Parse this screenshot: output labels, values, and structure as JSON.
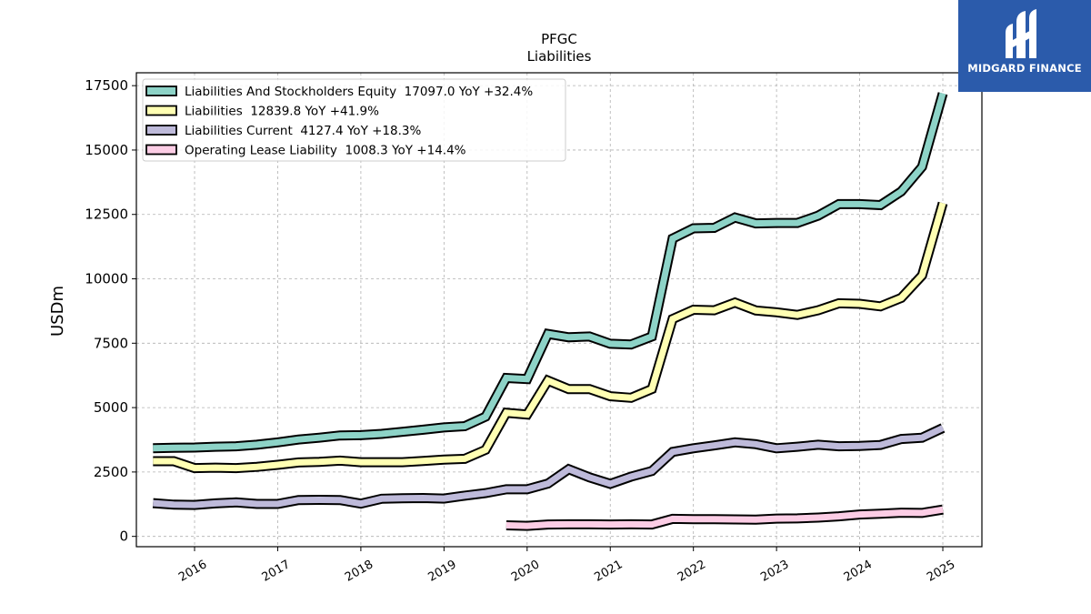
{
  "brand": {
    "name": "MIDGARD FINANCE",
    "logo_icon": "midgard-logo-icon",
    "background": "#2b5bab"
  },
  "chart_data": {
    "type": "line",
    "title": "PFGC",
    "subtitle": "Liabilities",
    "xlabel": "",
    "ylabel": "USDm",
    "xlim": [
      2015.3,
      2025.47
    ],
    "ylim": [
      -400,
      18000
    ],
    "yticks": [
      0,
      2500,
      5000,
      7500,
      10000,
      12500,
      15000,
      17500
    ],
    "xticks": [
      2016,
      2017,
      2018,
      2019,
      2020,
      2021,
      2022,
      2023,
      2024,
      2025
    ],
    "grid": true,
    "legend_position": "top-left",
    "series": [
      {
        "name": "Liabilities And Stockholders Equity",
        "legend": "Liabilities And Stockholders Equity  17097.0 YoY +32.4%",
        "color": "#8dd3c7",
        "points": [
          [
            2015.5,
            3420
          ],
          [
            2015.75,
            3440
          ],
          [
            2016.0,
            3450
          ],
          [
            2016.25,
            3480
          ],
          [
            2016.5,
            3500
          ],
          [
            2016.75,
            3560
          ],
          [
            2017.0,
            3650
          ],
          [
            2017.25,
            3760
          ],
          [
            2017.5,
            3830
          ],
          [
            2017.75,
            3920
          ],
          [
            2018.0,
            3930
          ],
          [
            2018.25,
            3980
          ],
          [
            2018.5,
            4060
          ],
          [
            2018.75,
            4140
          ],
          [
            2019.0,
            4230
          ],
          [
            2019.25,
            4280
          ],
          [
            2019.5,
            4650
          ],
          [
            2019.75,
            6150
          ],
          [
            2020.0,
            6110
          ],
          [
            2020.25,
            7860
          ],
          [
            2020.5,
            7730
          ],
          [
            2020.75,
            7760
          ],
          [
            2021.0,
            7480
          ],
          [
            2021.25,
            7450
          ],
          [
            2021.5,
            7760
          ],
          [
            2021.75,
            11560
          ],
          [
            2022.0,
            11960
          ],
          [
            2022.25,
            11980
          ],
          [
            2022.5,
            12380
          ],
          [
            2022.75,
            12150
          ],
          [
            2023.0,
            12170
          ],
          [
            2023.25,
            12170
          ],
          [
            2023.5,
            12450
          ],
          [
            2023.75,
            12900
          ],
          [
            2024.0,
            12900
          ],
          [
            2024.25,
            12860
          ],
          [
            2024.5,
            13390
          ],
          [
            2024.75,
            14350
          ],
          [
            2025.0,
            17200
          ]
        ]
      },
      {
        "name": "Liabilities",
        "legend": "Liabilities  12839.8 YoY +41.9%",
        "color": "#ffffb3",
        "points": [
          [
            2015.5,
            2920
          ],
          [
            2015.75,
            2920
          ],
          [
            2016.0,
            2650
          ],
          [
            2016.25,
            2670
          ],
          [
            2016.5,
            2650
          ],
          [
            2016.75,
            2700
          ],
          [
            2017.0,
            2780
          ],
          [
            2017.25,
            2870
          ],
          [
            2017.5,
            2890
          ],
          [
            2017.75,
            2940
          ],
          [
            2018.0,
            2880
          ],
          [
            2018.25,
            2880
          ],
          [
            2018.5,
            2880
          ],
          [
            2018.75,
            2930
          ],
          [
            2019.0,
            2980
          ],
          [
            2019.25,
            3010
          ],
          [
            2019.5,
            3360
          ],
          [
            2019.75,
            4800
          ],
          [
            2020.0,
            4730
          ],
          [
            2020.25,
            6050
          ],
          [
            2020.5,
            5720
          ],
          [
            2020.75,
            5720
          ],
          [
            2021.0,
            5440
          ],
          [
            2021.25,
            5380
          ],
          [
            2021.5,
            5720
          ],
          [
            2021.75,
            8440
          ],
          [
            2022.0,
            8800
          ],
          [
            2022.25,
            8780
          ],
          [
            2022.5,
            9080
          ],
          [
            2022.75,
            8770
          ],
          [
            2023.0,
            8700
          ],
          [
            2023.25,
            8600
          ],
          [
            2023.5,
            8780
          ],
          [
            2023.75,
            9050
          ],
          [
            2024.0,
            9030
          ],
          [
            2024.25,
            8930
          ],
          [
            2024.5,
            9260
          ],
          [
            2024.75,
            10130
          ],
          [
            2025.0,
            12940
          ]
        ]
      },
      {
        "name": "Liabilities Current",
        "legend": "Liabilities Current  4127.4 YoY +18.3%",
        "color": "#bebada",
        "points": [
          [
            2015.5,
            1290
          ],
          [
            2015.75,
            1230
          ],
          [
            2016.0,
            1220
          ],
          [
            2016.25,
            1280
          ],
          [
            2016.5,
            1320
          ],
          [
            2016.75,
            1260
          ],
          [
            2017.0,
            1260
          ],
          [
            2017.25,
            1410
          ],
          [
            2017.5,
            1420
          ],
          [
            2017.75,
            1410
          ],
          [
            2018.0,
            1270
          ],
          [
            2018.25,
            1460
          ],
          [
            2018.5,
            1480
          ],
          [
            2018.75,
            1490
          ],
          [
            2019.0,
            1470
          ],
          [
            2019.25,
            1580
          ],
          [
            2019.5,
            1680
          ],
          [
            2019.75,
            1830
          ],
          [
            2020.0,
            1830
          ],
          [
            2020.25,
            2050
          ],
          [
            2020.5,
            2610
          ],
          [
            2020.75,
            2290
          ],
          [
            2021.0,
            2040
          ],
          [
            2021.25,
            2320
          ],
          [
            2021.5,
            2540
          ],
          [
            2021.75,
            3280
          ],
          [
            2022.0,
            3420
          ],
          [
            2022.25,
            3530
          ],
          [
            2022.5,
            3650
          ],
          [
            2022.75,
            3580
          ],
          [
            2023.0,
            3420
          ],
          [
            2023.25,
            3480
          ],
          [
            2023.5,
            3560
          ],
          [
            2023.75,
            3500
          ],
          [
            2024.0,
            3510
          ],
          [
            2024.25,
            3550
          ],
          [
            2024.5,
            3780
          ],
          [
            2024.75,
            3830
          ],
          [
            2025.0,
            4210
          ]
        ]
      },
      {
        "name": "Operating Lease Liability",
        "legend": "Operating Lease Liability  1008.3 YoY +14.4%",
        "color": "#fccde5",
        "points": [
          [
            2019.75,
            430
          ],
          [
            2020.0,
            410
          ],
          [
            2020.25,
            460
          ],
          [
            2020.5,
            470
          ],
          [
            2020.75,
            470
          ],
          [
            2021.0,
            460
          ],
          [
            2021.25,
            470
          ],
          [
            2021.5,
            460
          ],
          [
            2021.75,
            680
          ],
          [
            2022.0,
            670
          ],
          [
            2022.25,
            670
          ],
          [
            2022.5,
            660
          ],
          [
            2022.75,
            650
          ],
          [
            2023.0,
            690
          ],
          [
            2023.25,
            700
          ],
          [
            2023.5,
            730
          ],
          [
            2023.75,
            780
          ],
          [
            2024.0,
            850
          ],
          [
            2024.25,
            880
          ],
          [
            2024.5,
            920
          ],
          [
            2024.75,
            910
          ],
          [
            2025.0,
            1040
          ]
        ]
      }
    ]
  }
}
